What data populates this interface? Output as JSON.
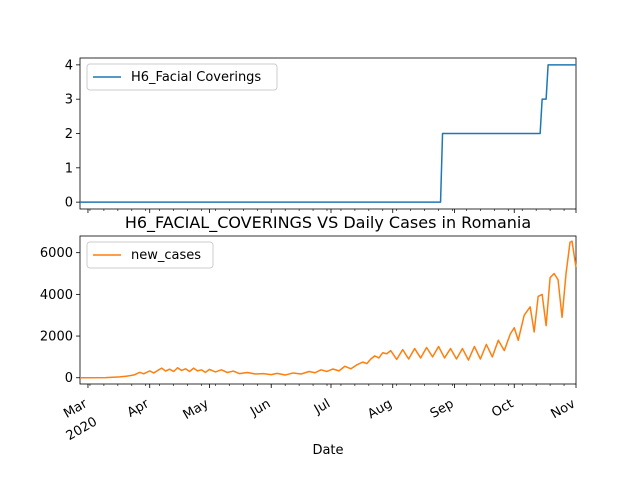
{
  "chart_data": [
    {
      "type": "line",
      "title": "",
      "xlabel": "",
      "ylabel": "",
      "ylim": [
        -0.2,
        4.2
      ],
      "yticks": [
        0,
        1,
        2,
        3,
        4
      ],
      "legend": "top-left",
      "grid": false,
      "series": [
        {
          "name": "H6_Facial Coverings",
          "color": "#1f77b4",
          "points": [
            [
              "2020-02-26",
              0
            ],
            [
              "2020-08-25",
              0
            ],
            [
              "2020-08-26",
              2
            ],
            [
              "2020-10-14",
              2
            ],
            [
              "2020-10-15",
              3
            ],
            [
              "2020-10-17",
              3
            ],
            [
              "2020-10-18",
              4
            ],
            [
              "2020-11-01",
              4
            ]
          ]
        }
      ]
    },
    {
      "type": "line",
      "title": "H6_FACIAL_COVERINGS VS Daily Cases in Romania",
      "xlabel": "Date",
      "ylabel": "",
      "ylim": [
        -300,
        6800
      ],
      "yticks": [
        0,
        2000,
        4000,
        6000
      ],
      "x_range": [
        "2020-02-26",
        "2020-11-01"
      ],
      "xticks": [
        {
          "date": "2020-03-01",
          "label": "Mar",
          "sublabel": "2020"
        },
        {
          "date": "2020-04-01",
          "label": "Apr"
        },
        {
          "date": "2020-05-01",
          "label": "May"
        },
        {
          "date": "2020-06-01",
          "label": "Jun"
        },
        {
          "date": "2020-07-01",
          "label": "Jul"
        },
        {
          "date": "2020-08-01",
          "label": "Aug"
        },
        {
          "date": "2020-09-01",
          "label": "Sep"
        },
        {
          "date": "2020-10-01",
          "label": "Oct"
        },
        {
          "date": "2020-11-01",
          "label": "Nov"
        }
      ],
      "legend": "top-left",
      "grid": false,
      "series": [
        {
          "name": "new_cases",
          "color": "#ff7f0e",
          "points": [
            [
              "2020-02-26",
              0
            ],
            [
              "2020-03-10",
              5
            ],
            [
              "2020-03-17",
              40
            ],
            [
              "2020-03-20",
              70
            ],
            [
              "2020-03-24",
              130
            ],
            [
              "2020-03-27",
              260
            ],
            [
              "2020-03-29",
              190
            ],
            [
              "2020-04-01",
              330
            ],
            [
              "2020-04-03",
              230
            ],
            [
              "2020-04-05",
              350
            ],
            [
              "2020-04-07",
              460
            ],
            [
              "2020-04-09",
              320
            ],
            [
              "2020-04-11",
              410
            ],
            [
              "2020-04-13",
              300
            ],
            [
              "2020-04-15",
              480
            ],
            [
              "2020-04-17",
              350
            ],
            [
              "2020-04-19",
              430
            ],
            [
              "2020-04-21",
              300
            ],
            [
              "2020-04-23",
              460
            ],
            [
              "2020-04-25",
              330
            ],
            [
              "2020-04-27",
              380
            ],
            [
              "2020-04-29",
              260
            ],
            [
              "2020-05-01",
              400
            ],
            [
              "2020-05-04",
              280
            ],
            [
              "2020-05-07",
              380
            ],
            [
              "2020-05-10",
              250
            ],
            [
              "2020-05-13",
              320
            ],
            [
              "2020-05-16",
              200
            ],
            [
              "2020-05-20",
              250
            ],
            [
              "2020-05-24",
              180
            ],
            [
              "2020-05-28",
              200
            ],
            [
              "2020-06-01",
              150
            ],
            [
              "2020-06-04",
              210
            ],
            [
              "2020-06-08",
              130
            ],
            [
              "2020-06-12",
              230
            ],
            [
              "2020-06-16",
              180
            ],
            [
              "2020-06-20",
              300
            ],
            [
              "2020-06-23",
              240
            ],
            [
              "2020-06-26",
              380
            ],
            [
              "2020-06-29",
              300
            ],
            [
              "2020-07-02",
              420
            ],
            [
              "2020-07-05",
              330
            ],
            [
              "2020-07-08",
              550
            ],
            [
              "2020-07-11",
              430
            ],
            [
              "2020-07-14",
              620
            ],
            [
              "2020-07-17",
              750
            ],
            [
              "2020-07-19",
              680
            ],
            [
              "2020-07-21",
              900
            ],
            [
              "2020-07-23",
              1050
            ],
            [
              "2020-07-25",
              950
            ],
            [
              "2020-07-27",
              1200
            ],
            [
              "2020-07-29",
              1150
            ],
            [
              "2020-07-31",
              1300
            ],
            [
              "2020-08-03",
              880
            ],
            [
              "2020-08-06",
              1350
            ],
            [
              "2020-08-09",
              900
            ],
            [
              "2020-08-12",
              1400
            ],
            [
              "2020-08-15",
              950
            ],
            [
              "2020-08-18",
              1450
            ],
            [
              "2020-08-21",
              1000
            ],
            [
              "2020-08-24",
              1500
            ],
            [
              "2020-08-27",
              950
            ],
            [
              "2020-08-30",
              1400
            ],
            [
              "2020-09-02",
              900
            ],
            [
              "2020-09-05",
              1400
            ],
            [
              "2020-09-08",
              850
            ],
            [
              "2020-09-11",
              1500
            ],
            [
              "2020-09-14",
              900
            ],
            [
              "2020-09-17",
              1600
            ],
            [
              "2020-09-20",
              1000
            ],
            [
              "2020-09-23",
              1800
            ],
            [
              "2020-09-26",
              1300
            ],
            [
              "2020-09-29",
              2100
            ],
            [
              "2020-10-01",
              2400
            ],
            [
              "2020-10-03",
              1800
            ],
            [
              "2020-10-06",
              3000
            ],
            [
              "2020-10-09",
              3400
            ],
            [
              "2020-10-11",
              2200
            ],
            [
              "2020-10-13",
              3900
            ],
            [
              "2020-10-15",
              4000
            ],
            [
              "2020-10-17",
              2500
            ],
            [
              "2020-10-19",
              4800
            ],
            [
              "2020-10-21",
              5000
            ],
            [
              "2020-10-23",
              4700
            ],
            [
              "2020-10-25",
              2900
            ],
            [
              "2020-10-27",
              5000
            ],
            [
              "2020-10-29",
              6500
            ],
            [
              "2020-10-30",
              6550
            ],
            [
              "2020-11-01",
              5300
            ]
          ]
        }
      ]
    }
  ]
}
